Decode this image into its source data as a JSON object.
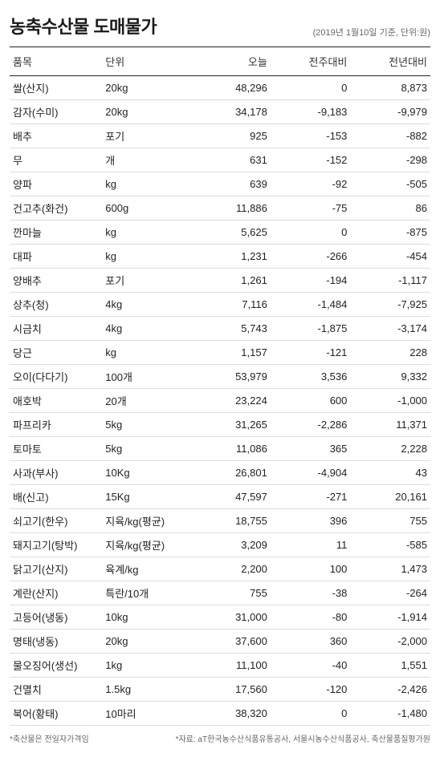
{
  "header": {
    "title": "농축수산물 도매물가",
    "subtitle": "(2019년 1월10일 기준, 단위:원)"
  },
  "table": {
    "columns": [
      "품목",
      "단위",
      "오늘",
      "전주대비",
      "전년대비"
    ],
    "rows": [
      [
        "쌀(산지)",
        "20kg",
        "48,296",
        "0",
        "8,873"
      ],
      [
        "감자(수미)",
        "20kg",
        "34,178",
        "-9,183",
        "-9,979"
      ],
      [
        "배추",
        "포기",
        "925",
        "-153",
        "-882"
      ],
      [
        "무",
        "개",
        "631",
        "-152",
        "-298"
      ],
      [
        "양파",
        "kg",
        "639",
        "-92",
        "-505"
      ],
      [
        "건고추(화건)",
        "600g",
        "11,886",
        "-75",
        "86"
      ],
      [
        "깐마늘",
        "kg",
        "5,625",
        "0",
        "-875"
      ],
      [
        "대파",
        "kg",
        "1,231",
        "-266",
        "-454"
      ],
      [
        "양배추",
        "포기",
        "1,261",
        "-194",
        "-1,117"
      ],
      [
        "상추(청)",
        "4kg",
        "7,116",
        "-1,484",
        "-7,925"
      ],
      [
        "시금치",
        "4kg",
        "5,743",
        "-1,875",
        "-3,174"
      ],
      [
        "당근",
        "kg",
        "1,157",
        "-121",
        "228"
      ],
      [
        "오이(다다기)",
        "100개",
        "53,979",
        "3,536",
        "9,332"
      ],
      [
        "애호박",
        "20개",
        "23,224",
        "600",
        "-1,000"
      ],
      [
        "파프리카",
        "5kg",
        "31,265",
        "-2,286",
        "11,371"
      ],
      [
        "토마토",
        "5kg",
        "11,086",
        "365",
        "2,228"
      ],
      [
        "사과(부사)",
        "10Kg",
        "26,801",
        "-4,904",
        "43"
      ],
      [
        "배(신고)",
        "15Kg",
        "47,597",
        "-271",
        "20,161"
      ],
      [
        "쇠고기(한우)",
        "지육/kg(평균)",
        "18,755",
        "396",
        "755"
      ],
      [
        "돼지고기(탕박)",
        "지육/kg(평균)",
        "3,209",
        "11",
        "-585"
      ],
      [
        "닭고기(산지)",
        "육계/kg",
        "2,200",
        "100",
        "1,473"
      ],
      [
        "계란(산지)",
        "특란/10개",
        "755",
        "-38",
        "-264"
      ],
      [
        "고등어(냉동)",
        "10kg",
        "31,000",
        "-80",
        "-1,914"
      ],
      [
        "명태(냉동)",
        "20kg",
        "37,600",
        "360",
        "-2,000"
      ],
      [
        "물오징어(생선)",
        "1kg",
        "11,100",
        "-40",
        "1,551"
      ],
      [
        "건멸치",
        "1.5kg",
        "17,560",
        "-120",
        "-2,426"
      ],
      [
        "북어(황태)",
        "10마리",
        "38,320",
        "0",
        "-1,480"
      ]
    ]
  },
  "footer": {
    "left": "*축산물은 전일자가격임",
    "right": "*자료: aT한국농수산식품유통공사, 서울시농수산식품공사, 축산물품질평가원"
  }
}
